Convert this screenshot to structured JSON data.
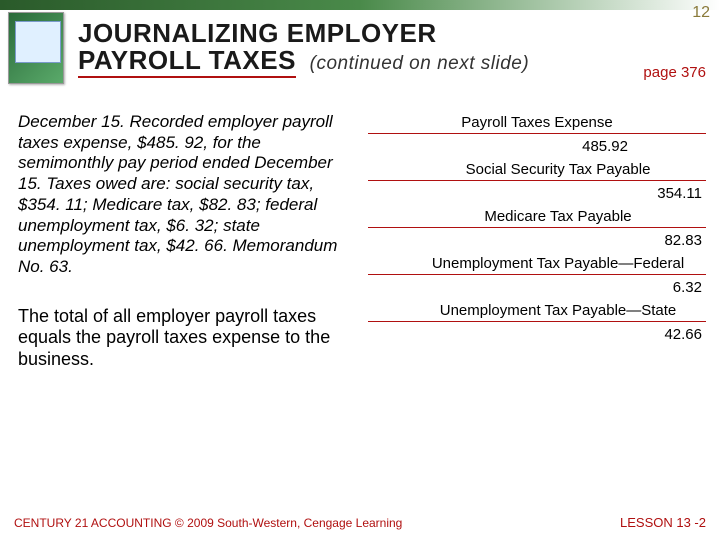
{
  "slide_number": "12",
  "title": {
    "line1": "JOURNALIZING EMPLOYER",
    "line2": "PAYROLL TAXES",
    "continuation": "(continued on next slide)"
  },
  "page_ref": "page 376",
  "description": "December 15. Recorded employer payroll taxes expense, $485. 92, for the semimonthly pay period ended December 15. Taxes owed are: social security tax, $354. 11; Medicare tax, $82. 83; federal unemployment tax, $6. 32; state unemployment tax, $42. 66. Memorandum No. 63.",
  "summary": "The total of all employer payroll taxes equals the payroll taxes expense to the business.",
  "accounts": [
    {
      "name": "Payroll Taxes Expense",
      "value": "485.92",
      "side": "debit",
      "indent": 0
    },
    {
      "name": "Social Security Tax Payable",
      "value": "354.11",
      "side": "credit",
      "indent": 1
    },
    {
      "name": "Medicare Tax Payable",
      "value": "82.83",
      "side": "credit",
      "indent": 1
    },
    {
      "name": "Unemployment Tax Payable—Federal",
      "value": "6.32",
      "side": "credit",
      "indent": 1
    },
    {
      "name": "Unemployment Tax Payable—State",
      "value": "42.66",
      "side": "credit",
      "indent": 1
    }
  ],
  "footer": {
    "left": "CENTURY 21 ACCOUNTING © 2009 South-Western, Cengage Learning",
    "right": "LESSON  13 -2"
  },
  "colors": {
    "accent_red": "#b01010",
    "accent_gold": "#8a7a3a",
    "header_green_dark": "#2a5a2a",
    "header_green_light": "#4a8a4a"
  }
}
